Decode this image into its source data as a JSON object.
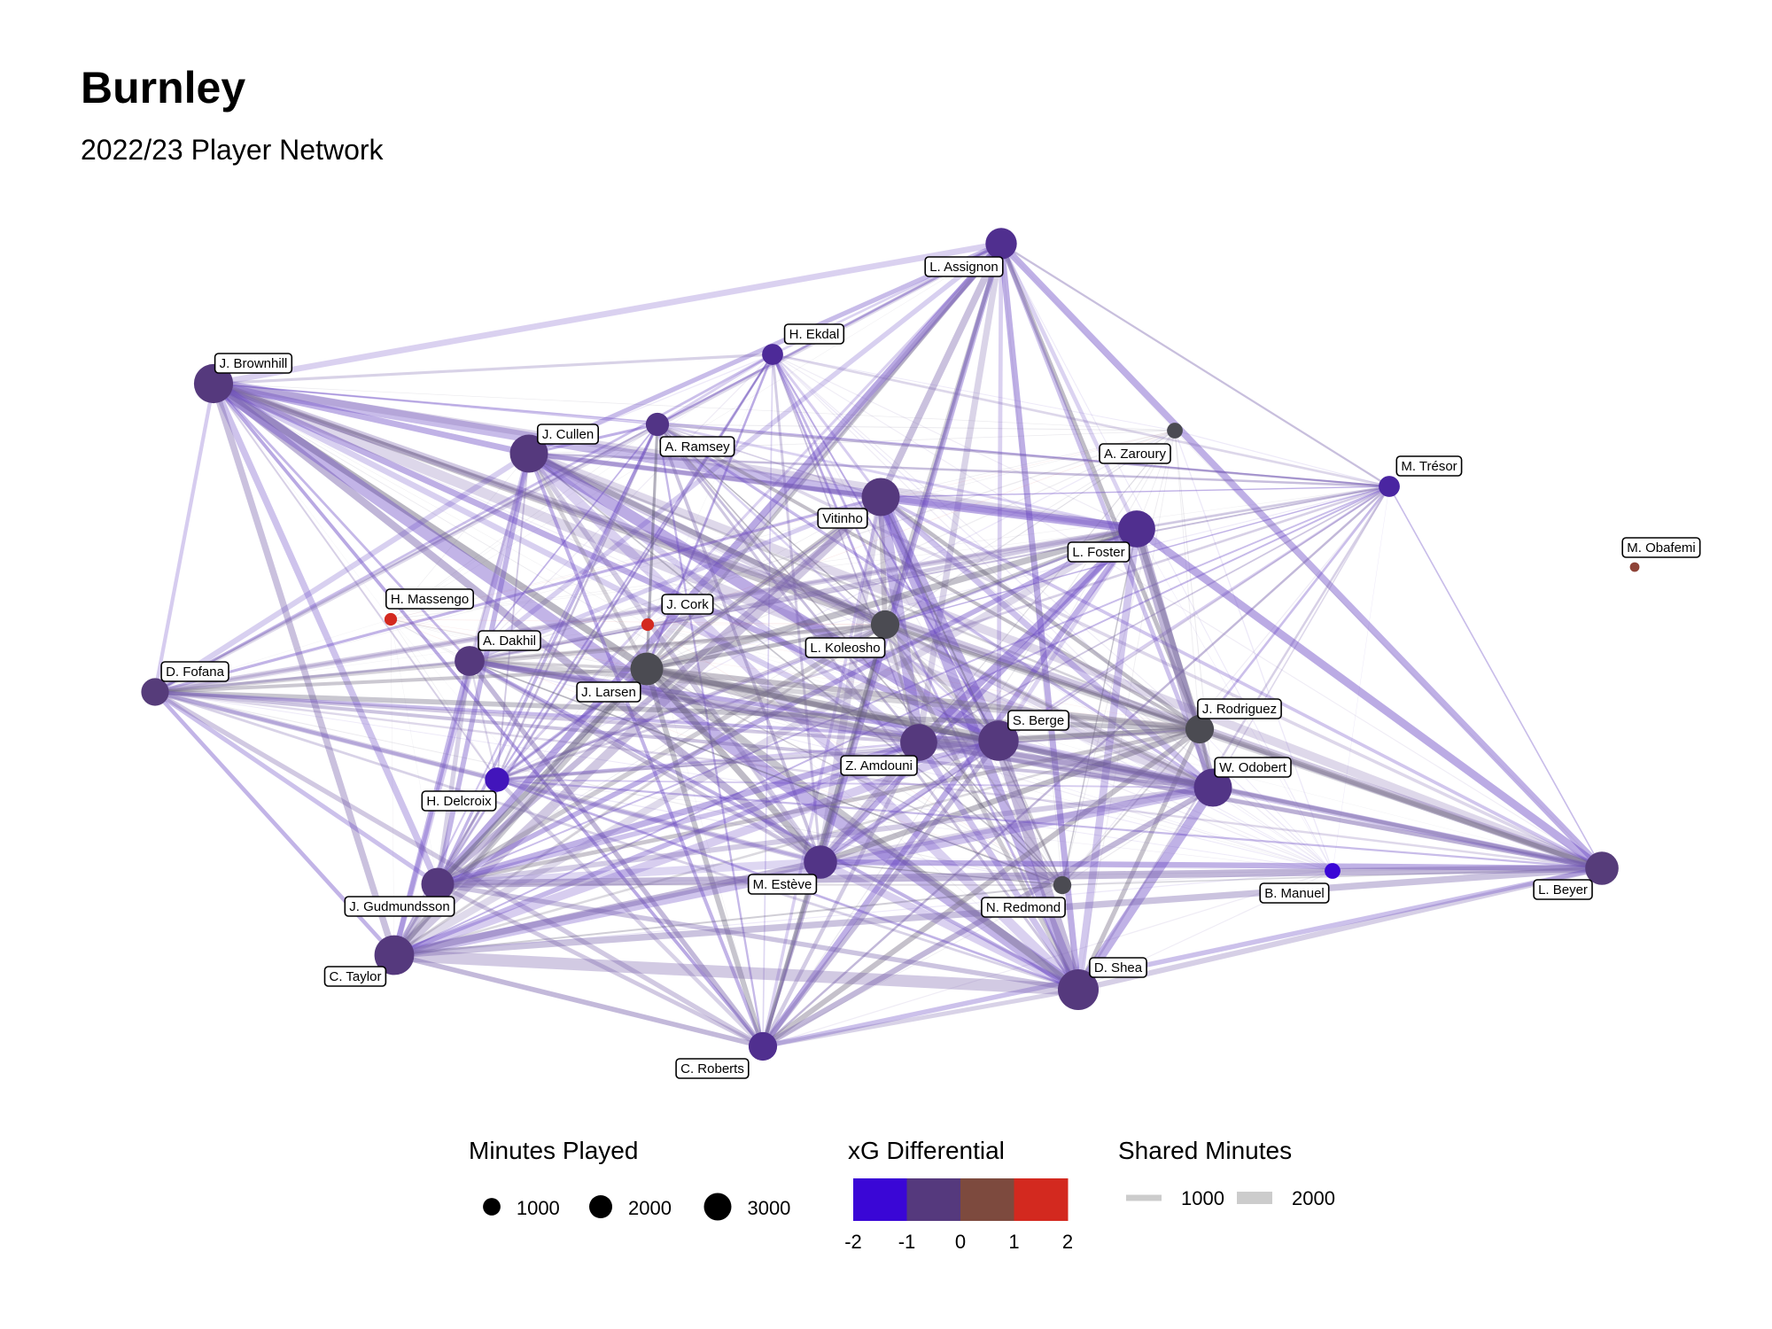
{
  "header": {
    "title": "Burnley",
    "subtitle": "2022/23 Player Network"
  },
  "chart_data": {
    "type": "network",
    "nodes": [
      {
        "name": "L. Assignon",
        "minutes": 1900,
        "xg_diff": -1.2
      },
      {
        "name": "H. Ekdal",
        "minutes": 700,
        "xg_diff": -1.3
      },
      {
        "name": "J. Brownhill",
        "minutes": 3200,
        "xg_diff": -1.0
      },
      {
        "name": "J. Cullen",
        "minutes": 3000,
        "xg_diff": -1.0
      },
      {
        "name": "A. Ramsey",
        "minutes": 900,
        "xg_diff": -1.1
      },
      {
        "name": "A. Zaroury",
        "minutes": 300,
        "xg_diff": 0
      },
      {
        "name": "M. Trésor",
        "minutes": 700,
        "xg_diff": -1.4
      },
      {
        "name": "Vitinho",
        "minutes": 3000,
        "xg_diff": -1.0
      },
      {
        "name": "L. Foster",
        "minutes": 2800,
        "xg_diff": -1.2
      },
      {
        "name": "M. Obafemi",
        "minutes": 50,
        "xg_diff": 1.2
      },
      {
        "name": "H. Massengo",
        "minutes": 150,
        "xg_diff": 2.0
      },
      {
        "name": "J. Cork",
        "minutes": 150,
        "xg_diff": 2.0
      },
      {
        "name": "L. Koleosho",
        "minutes": 1500,
        "xg_diff": 0
      },
      {
        "name": "A. Dakhil",
        "minutes": 1700,
        "xg_diff": -1.0
      },
      {
        "name": "D. Fofana",
        "minutes": 1400,
        "xg_diff": -0.9
      },
      {
        "name": "J. Larsen",
        "minutes": 2100,
        "xg_diff": 0
      },
      {
        "name": "J. Rodriguez",
        "minutes": 1500,
        "xg_diff": 0
      },
      {
        "name": "S. Berge",
        "minutes": 3400,
        "xg_diff": -1.0
      },
      {
        "name": "Z. Amdouni",
        "minutes": 2800,
        "xg_diff": -1.0
      },
      {
        "name": "W. Odobert",
        "minutes": 3000,
        "xg_diff": -1.1
      },
      {
        "name": "H. Delcroix",
        "minutes": 1000,
        "xg_diff": -1.7
      },
      {
        "name": "M. Estève",
        "minutes": 2200,
        "xg_diff": -1.1
      },
      {
        "name": "N. Redmond",
        "minutes": 450,
        "xg_diff": 0
      },
      {
        "name": "B. Manuel",
        "minutes": 300,
        "xg_diff": -2.0
      },
      {
        "name": "L. Beyer",
        "minutes": 2200,
        "xg_diff": -0.9
      },
      {
        "name": "J. Gudmundsson",
        "minutes": 2100,
        "xg_diff": -1.0
      },
      {
        "name": "C. Taylor",
        "minutes": 3300,
        "xg_diff": -1.0
      },
      {
        "name": "D. Shea",
        "minutes": 3500,
        "xg_diff": -1.0
      },
      {
        "name": "C. Roberts",
        "minutes": 1500,
        "xg_diff": -1.2
      }
    ],
    "legend": {
      "size": {
        "title": "Minutes Played",
        "values": [
          1000,
          2000,
          3000
        ],
        "labels": [
          "1000",
          "2000",
          "3000"
        ]
      },
      "color": {
        "title": "xG Differential",
        "values": [
          -2,
          -1,
          0,
          1,
          2
        ],
        "labels": [
          "-2",
          "-1",
          "0",
          "1",
          "2"
        ],
        "colors": [
          "#3a06d6",
          "#55397d",
          "#7d4a3e",
          "#d3291f"
        ]
      },
      "width": {
        "title": "Shared Minutes",
        "values": [
          1000,
          2000
        ],
        "labels": [
          "1000",
          "2000"
        ],
        "color": "#cccccc"
      }
    }
  }
}
